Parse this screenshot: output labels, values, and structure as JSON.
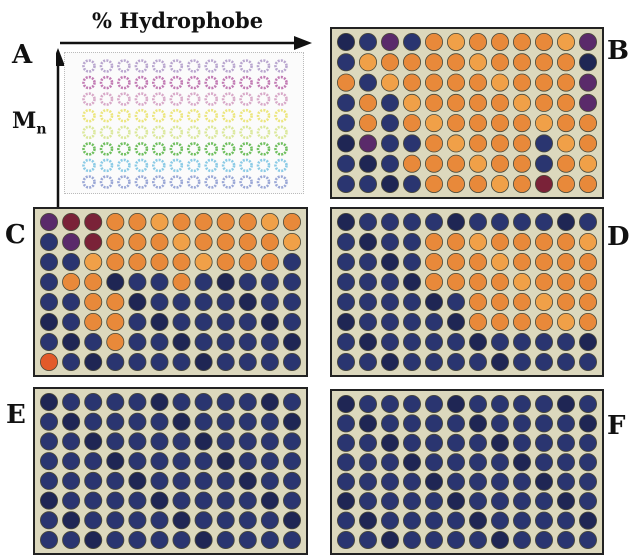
{
  "figure": {
    "x_axis_label": "% Hydrophobe",
    "y_axis_label": "M",
    "y_axis_subscript": "n"
  },
  "panels": [
    {
      "letter": "A",
      "key": "A"
    },
    {
      "letter": "B",
      "key": "B"
    },
    {
      "letter": "C",
      "key": "C"
    },
    {
      "letter": "D",
      "key": "D"
    },
    {
      "letter": "E",
      "key": "E"
    },
    {
      "letter": "F",
      "key": "F"
    }
  ],
  "colors": {
    "orange": "#e8893a",
    "orange_light": "#f0a048",
    "red_orange": "#e25a2a",
    "navy": "#2a3570",
    "navy_dark": "#1f2654",
    "purple": "#5a2a6a",
    "maroon": "#7a2238",
    "well_background": "#dcd8bd",
    "reference_rows": [
      "#b9a6cf",
      "#c27bb4",
      "#d8a9c8",
      "#ece67e",
      "#dbe89b",
      "#6fbf5e",
      "#8bcbe6",
      "#9aa7d6"
    ]
  },
  "plates": {
    "rows": 8,
    "cols": 12,
    "B": [
      "nnpnooooooop",
      "noooooooooop",
      "onooooooooop",
      "nonoooooooop",
      "nonooooooooo",
      "npnnooooonoo",
      "npnoooooonoo",
      "nnnnooooomoo"
    ],
    "C": [
      "mmmooooooooo",
      "nmmooooooooo",
      "nnooooooooon",
      "noonnnonnnnn",
      "nnoonnnnnnnn",
      "nnoonnnnnnnn",
      "nnnonnnnnnnn",
      "rnnnnnnnnnnn"
    ],
    "D": [
      "nnnnnnnnnnnn",
      "nnnnoooooooo",
      "nnnnoooooooo",
      "nnnnoooooooo",
      "nnnnnnoooooo",
      "nnnnnnoooooo",
      "nnnnnnnnnnnn",
      "nnnnnnnnnnnn"
    ],
    "E": [
      "nnnnnnnnnnnn",
      "nnnnnnnnnnnn",
      "nnnnnnnnnnnn",
      "nnnnnnnnnnnn",
      "nnnnnnnnnnnn",
      "nnnnnnnnnnnn",
      "nnnnnnnnnnnn",
      "nnnnnnnnnnnn"
    ],
    "F": [
      "nnnnnnnnnnnn",
      "nnnnnnnnnnnn",
      "nnnnnnnnnnnn",
      "nnnnnnnnnnnn",
      "nnnnnnnnnnnn",
      "nnnnnnnnnnnn",
      "nnnnnnnnnnnn",
      "nnnnnnnnnnnn"
    ]
  }
}
